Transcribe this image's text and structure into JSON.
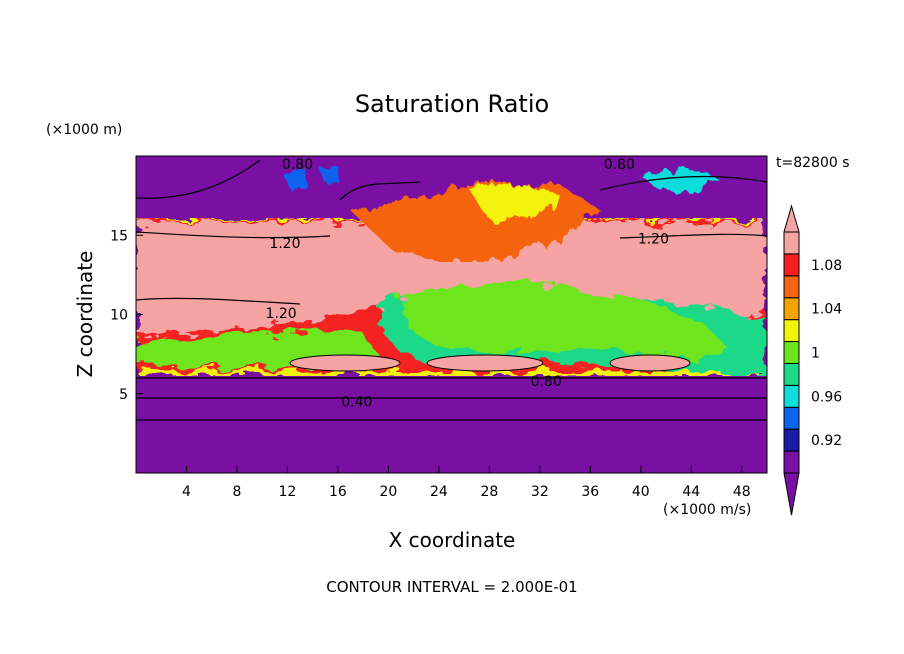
{
  "chart_data": {
    "type": "heatmap",
    "title": "Saturation Ratio",
    "xlabel": "X coordinate",
    "ylabel": "Z coordinate",
    "x_unit": "(×1000 m/s)",
    "y_unit": "(×1000 m)",
    "time_label": "t=82800 s",
    "footer": "CONTOUR INTERVAL = 2.000E-01",
    "xlim": [
      0,
      50
    ],
    "ylim": [
      0,
      20
    ],
    "x_ticks": [
      4,
      8,
      12,
      16,
      20,
      24,
      28,
      32,
      36,
      40,
      44,
      48
    ],
    "y_ticks": [
      5,
      10,
      15
    ],
    "colorbar": {
      "levels": [
        0.92,
        0.96,
        1,
        1.04,
        1.08
      ],
      "colors": [
        "#7a0fa3",
        "#1a1aa6",
        "#0a64ee",
        "#10dcdc",
        "#1ed98a",
        "#6ee51e",
        "#f2f20a",
        "#f5a400",
        "#f56410",
        "#f52020",
        "#f5a3a3"
      ]
    },
    "contour_labels": [
      {
        "text": "0.80",
        "x": 12.8,
        "z": 19.5
      },
      {
        "text": "0.80",
        "x": 38.3,
        "z": 19.5
      },
      {
        "text": "1.20",
        "x": 11.8,
        "z": 14.5
      },
      {
        "text": "1.20",
        "x": 41.0,
        "z": 14.8
      },
      {
        "text": "1.20",
        "x": 11.5,
        "z": 10.1
      },
      {
        "text": "0.80",
        "x": 32.5,
        "z": 5.8
      },
      {
        "text": "0.40",
        "x": 17.5,
        "z": 4.5
      }
    ]
  }
}
